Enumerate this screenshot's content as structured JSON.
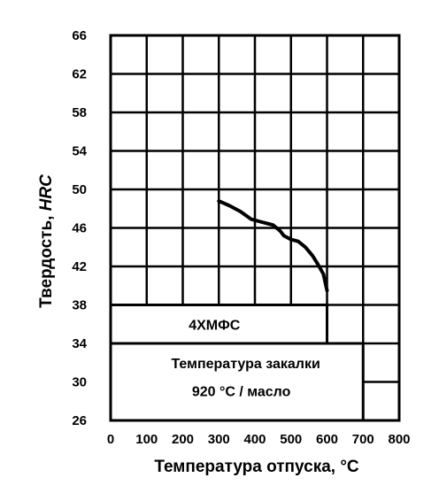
{
  "chart_data": {
    "type": "line",
    "xlabel": "Температура отпуска, °C",
    "ylabel": "Твердость, HRC",
    "ylabel_prefix": "Твердость, ",
    "ylabel_italic": "HRC",
    "x_ticks": [
      "0",
      "100",
      "200",
      "300",
      "400",
      "500",
      "600",
      "700",
      "800"
    ],
    "y_ticks": [
      "66",
      "62",
      "58",
      "54",
      "50",
      "46",
      "42",
      "38",
      "34",
      "30",
      "26"
    ],
    "xlim": [
      0,
      800
    ],
    "ylim": [
      26,
      66
    ],
    "grid": true,
    "series": [
      {
        "x": [
          300,
          330,
          360,
          390,
          420,
          450,
          470,
          480,
          500,
          520,
          540,
          560,
          575,
          590,
          600
        ],
        "y": [
          48.8,
          48.3,
          47.7,
          46.9,
          46.6,
          46.3,
          45.7,
          45.2,
          44.8,
          44.6,
          44.0,
          43.1,
          42.2,
          41.2,
          39.5
        ]
      }
    ],
    "annotations": {
      "steel_grade": "4ХМФС",
      "quench_line1": "Температура закалки",
      "quench_line2": "920 °C / масло"
    }
  }
}
